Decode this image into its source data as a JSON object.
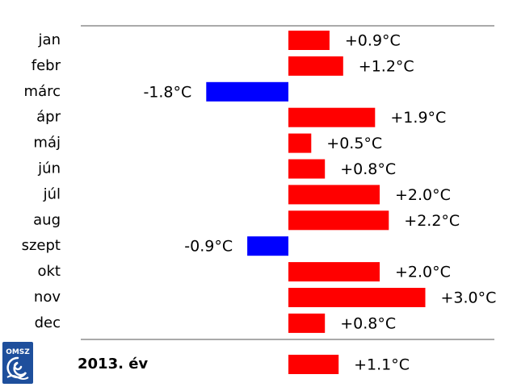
{
  "chart_data": {
    "type": "bar",
    "orientation": "horizontal",
    "categories": [
      "jan",
      "febr",
      "márc",
      "ápr",
      "máj",
      "jún",
      "júl",
      "aug",
      "szept",
      "okt",
      "nov",
      "dec"
    ],
    "values": [
      0.9,
      1.2,
      -1.8,
      1.9,
      0.5,
      0.8,
      2.0,
      2.2,
      -0.9,
      2.0,
      3.0,
      0.8
    ],
    "value_labels": [
      "+0.9°C",
      "+1.2°C",
      "-1.8°C",
      "+1.9°C",
      "+0.5°C",
      "+0.8°C",
      "+2.0°C",
      "+2.2°C",
      "-0.9°C",
      "+2.0°C",
      "+3.0°C",
      "+0.8°C"
    ],
    "annual": {
      "label": "2013. év",
      "value": 1.1,
      "value_label": "+1.1°C"
    },
    "unit": "°C",
    "colors": {
      "positive": "#ff0000",
      "negative": "#0000ff"
    },
    "grid": false,
    "legend": "none"
  },
  "logo": {
    "text": "OMSZ"
  }
}
